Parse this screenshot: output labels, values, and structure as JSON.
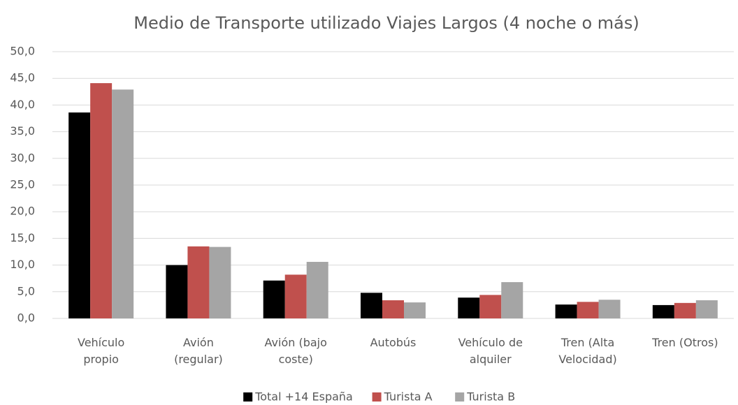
{
  "chart_data": {
    "type": "bar",
    "title": "Medio de Transporte utilizado Viajes Largos (4 noche o más)",
    "categories": [
      "Vehículo propio",
      "Avión (regular)",
      "Avión (bajo coste)",
      "Autobús",
      "Vehículo de alquiler",
      "Tren (Alta Velocidad)",
      "Tren (Otros)"
    ],
    "series": [
      {
        "name": "Total +14 España",
        "color": "#000000",
        "values": [
          38.6,
          10.0,
          7.1,
          4.8,
          3.9,
          2.6,
          2.5
        ]
      },
      {
        "name": "Turista A",
        "color": "#c0504d",
        "values": [
          44.1,
          13.5,
          8.2,
          3.4,
          4.4,
          3.1,
          2.9
        ]
      },
      {
        "name": "Turista B",
        "color": "#a5a5a5",
        "values": [
          42.9,
          13.4,
          10.6,
          3.0,
          6.8,
          3.5,
          3.4
        ]
      }
    ],
    "ylim": [
      0,
      50
    ],
    "yticks": [
      {
        "value": 0,
        "label": "0,0"
      },
      {
        "value": 5,
        "label": "5,0"
      },
      {
        "value": 10,
        "label": "10,0"
      },
      {
        "value": 15,
        "label": "15,0"
      },
      {
        "value": 20,
        "label": "20,0"
      },
      {
        "value": 25,
        "label": "25,0"
      },
      {
        "value": 30,
        "label": "30,0"
      },
      {
        "value": 35,
        "label": "35,0"
      },
      {
        "value": 40,
        "label": "40,0"
      },
      {
        "value": 45,
        "label": "45,0"
      },
      {
        "value": 50,
        "label": "50,0"
      }
    ],
    "grid": true,
    "legend": "bottom"
  }
}
